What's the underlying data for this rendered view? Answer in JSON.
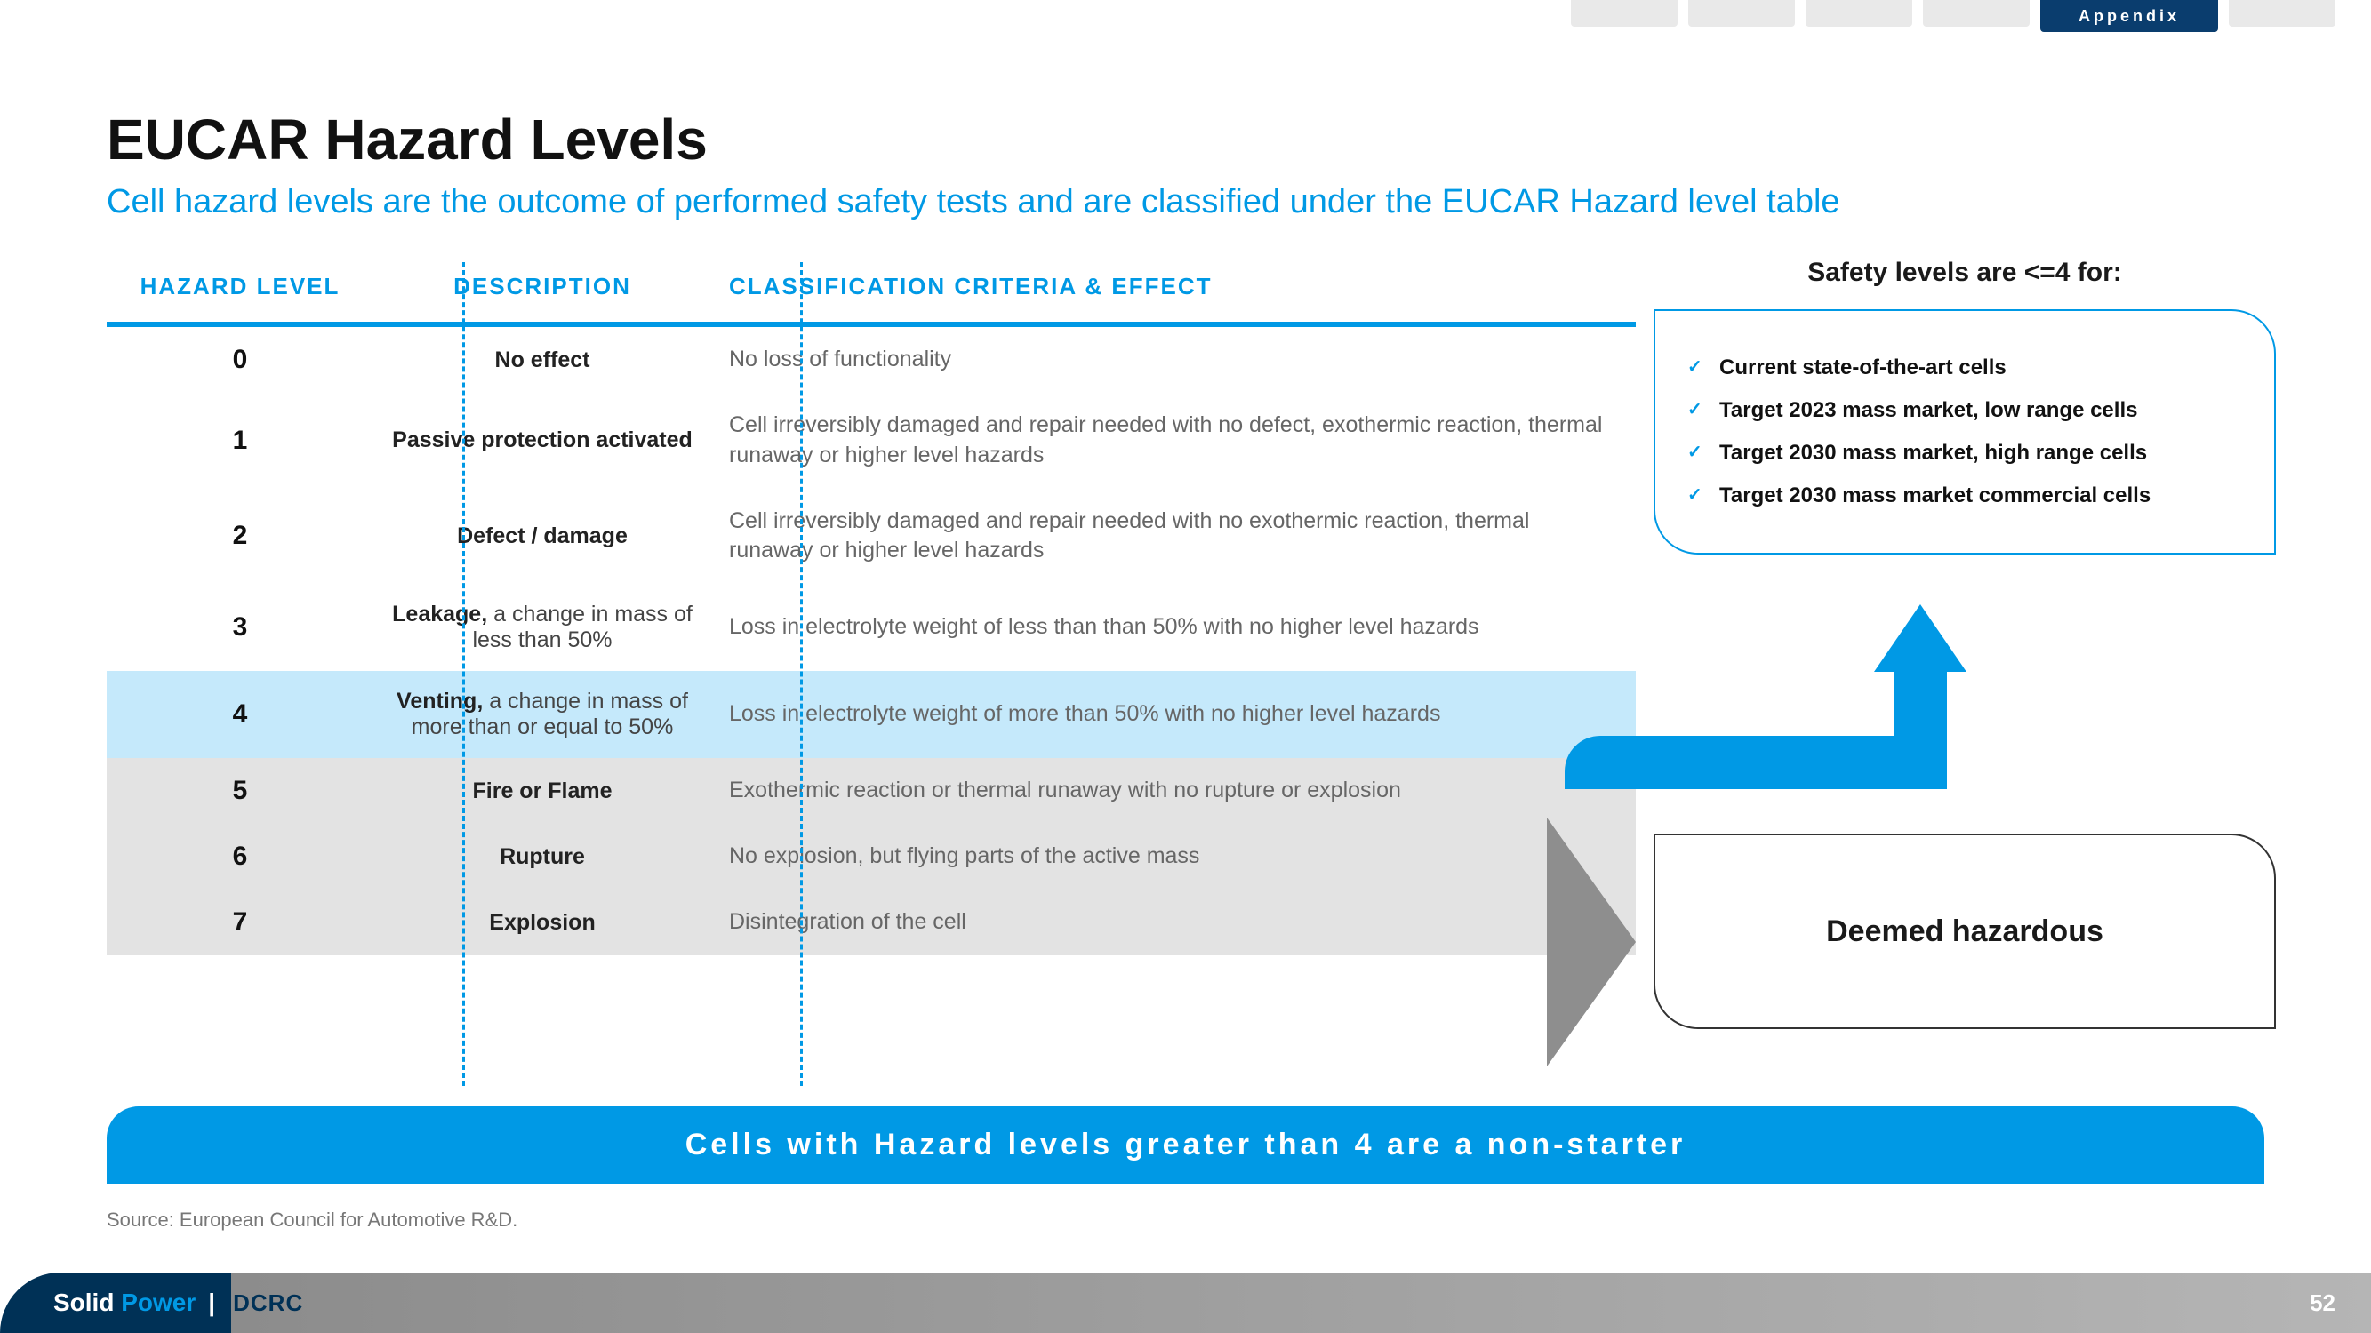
{
  "nav": {
    "active_tab": "Appendix"
  },
  "title": "EUCAR Hazard Levels",
  "subtitle": "Cell hazard levels are the outcome of performed safety tests and are classified under the EUCAR Hazard level table",
  "table": {
    "headers": {
      "level": "HAZARD LEVEL",
      "desc": "DESCRIPTION",
      "crit": "CLASSIFICATION CRITERIA & EFFECT"
    },
    "rows": [
      {
        "level": "0",
        "desc_lead": "No effect",
        "desc_tail": "",
        "crit": "No loss of functionality",
        "style": "plain"
      },
      {
        "level": "1",
        "desc_lead": "Passive protection activated",
        "desc_tail": "",
        "crit": "Cell irreversibly damaged and repair needed with no defect, exothermic reaction, thermal runaway or higher level hazards",
        "style": "plain"
      },
      {
        "level": "2",
        "desc_lead": "Defect / damage",
        "desc_tail": "",
        "crit": "Cell irreversibly damaged and repair needed with no exothermic reaction, thermal runaway or higher level hazards",
        "style": "plain"
      },
      {
        "level": "3",
        "desc_lead": "Leakage,",
        "desc_tail": " a change in mass of less than 50%",
        "crit": "Loss in electrolyte weight of less than than 50% with no higher level hazards",
        "style": "plain"
      },
      {
        "level": "4",
        "desc_lead": "Venting,",
        "desc_tail": " a change in mass of more than or equal to 50%",
        "crit": "Loss in electrolyte weight of more than 50% with no higher level hazards",
        "style": "highlight"
      },
      {
        "level": "5",
        "desc_lead": "Fire or Flame",
        "desc_tail": "",
        "crit": "Exothermic reaction or thermal runaway with no rupture or explosion",
        "style": "shade"
      },
      {
        "level": "6",
        "desc_lead": "Rupture",
        "desc_tail": "",
        "crit": "No explosion, but flying parts of the active mass",
        "style": "shade"
      },
      {
        "level": "7",
        "desc_lead": "Explosion",
        "desc_tail": "",
        "crit": "Disintegration of the cell",
        "style": "shade"
      }
    ]
  },
  "safety": {
    "title": "Safety levels are <=4 for:",
    "items": [
      "Current state-of-the-art cells",
      "Target 2023 mass market, low range cells",
      "Target 2030 mass market, high range cells",
      "Target 2030 mass market commercial cells"
    ]
  },
  "hazardous_label": "Deemed hazardous",
  "banner": "Cells with Hazard levels greater than 4 are a non-starter",
  "source": "Source: European Council for Automotive R&D.",
  "footer": {
    "brand_a": "Solid ",
    "brand_b": "Power",
    "brand_sep": " | ",
    "brand_partner": "DCRC"
  },
  "page_number": "52",
  "colors": {
    "accent": "#0099e5",
    "tab_active_bg": "#0a3d6e",
    "highlight_row": "#c5e9fb",
    "shade_row": "#e3e3e3",
    "footer_dark": "#003156",
    "footer_grey": "#8c8c8c"
  }
}
